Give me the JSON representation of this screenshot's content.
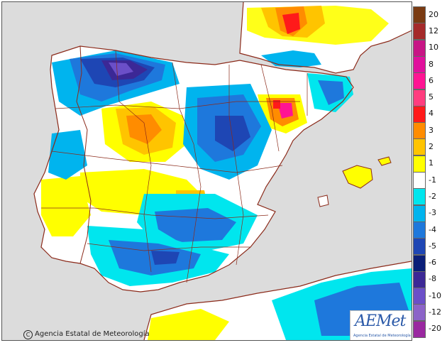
{
  "map": {
    "title": "",
    "copyright": "Agencia Estatal de Meteorología",
    "copyright_symbol": "C",
    "logo_text": "AEMet",
    "logo_subtext": "Agencia Estatal de Meteorología",
    "colors": {
      "sea": "#dcdcdc",
      "land_neutral": "#ffffff",
      "outline": "#8b2a1a"
    }
  },
  "legend": {
    "items": [
      {
        "label": "20",
        "color": "#7a3b12"
      },
      {
        "label": "12",
        "color": "#a52a2a"
      },
      {
        "label": "10",
        "color": "#c71585"
      },
      {
        "label": "8",
        "color": "#e0109c"
      },
      {
        "label": "6",
        "color": "#ff1493"
      },
      {
        "label": "5",
        "color": "#ff3d7f"
      },
      {
        "label": "4",
        "color": "#ff1a1a"
      },
      {
        "label": "3",
        "color": "#ff8c00"
      },
      {
        "label": "2",
        "color": "#ffc400"
      },
      {
        "label": "1",
        "color": "#ffff00"
      },
      {
        "label": "-1",
        "color": "#ffffff"
      },
      {
        "label": "-2",
        "color": "#00e6ee"
      },
      {
        "label": "-3",
        "color": "#00b4ee"
      },
      {
        "label": "-4",
        "color": "#1e78dc"
      },
      {
        "label": "-5",
        "color": "#1e46b4"
      },
      {
        "label": "-6",
        "color": "#0a1e78"
      },
      {
        "label": "-8",
        "color": "#3c2896"
      },
      {
        "label": "-10",
        "color": "#6b4fc8"
      },
      {
        "label": "-12",
        "color": "#8c64c8"
      },
      {
        "label": "-20",
        "color": "#9a28a0"
      }
    ]
  }
}
